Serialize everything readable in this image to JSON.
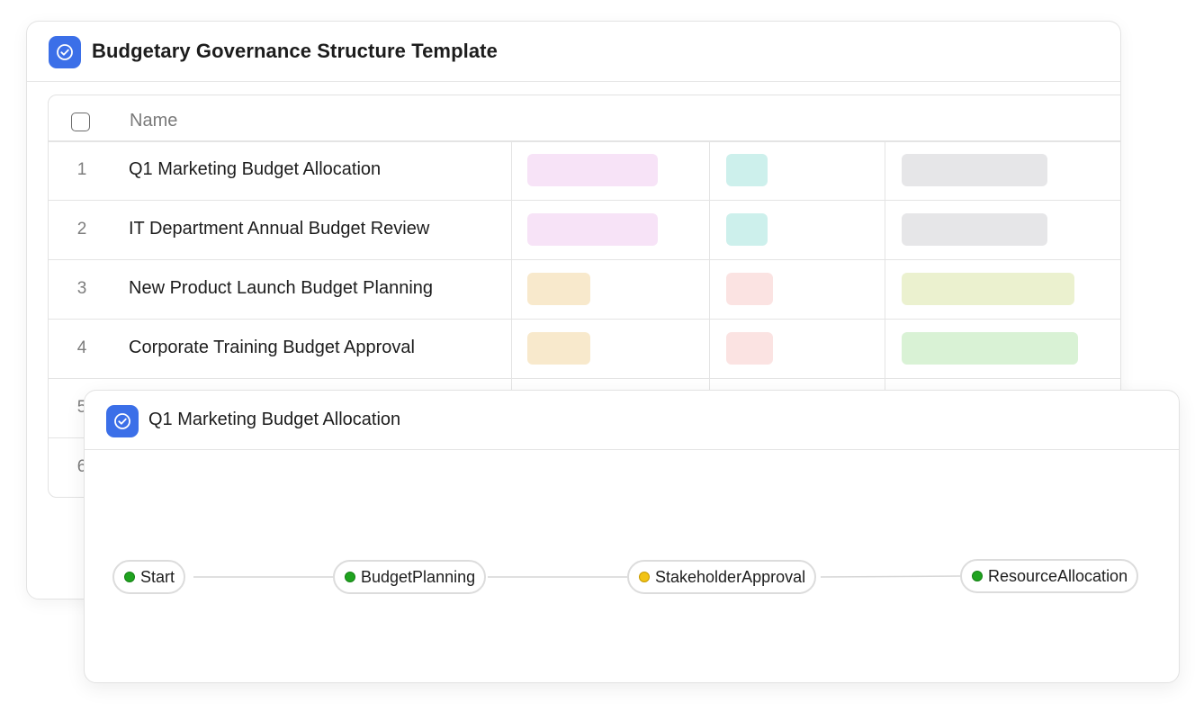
{
  "main_window": {
    "title": "Budgetary Governance Structure Template",
    "icon": "check-circle-icon",
    "accent_color": "#3b6fe8",
    "table": {
      "column_header": "Name",
      "rows": [
        {
          "num": "1",
          "name": "Q1 Marketing Budget Allocation",
          "tag_colors": [
            "#f7e3f7",
            "#cdf0ec",
            "#e6e6e8"
          ]
        },
        {
          "num": "2",
          "name": "IT Department Annual Budget Review",
          "tag_colors": [
            "#f7e3f7",
            "#cdf0ec",
            "#e6e6e8"
          ]
        },
        {
          "num": "3",
          "name": "New Product Launch Budget Planning",
          "tag_colors": [
            "#f8e9cc",
            "#fbe3e2",
            "#ebf1cf"
          ]
        },
        {
          "num": "4",
          "name": "Corporate Training Budget Approval",
          "tag_colors": [
            "#f8e9cc",
            "#fbe3e2",
            "#d9f2d5"
          ]
        },
        {
          "num": "5",
          "name": "",
          "tag_colors": []
        },
        {
          "num": "6",
          "name": "",
          "tag_colors": []
        }
      ]
    }
  },
  "detail_window": {
    "title": "Q1 Marketing Budget Allocation",
    "icon": "check-circle-icon",
    "flow_nodes": [
      {
        "label": "Start",
        "status": "green"
      },
      {
        "label": "BudgetPlanning",
        "status": "green"
      },
      {
        "label": "StakeholderApproval",
        "status": "yellow"
      },
      {
        "label": "ResourceAllocation",
        "status": "green"
      }
    ],
    "status_colors": {
      "green": "#1fa31f",
      "yellow": "#f2c314"
    }
  }
}
